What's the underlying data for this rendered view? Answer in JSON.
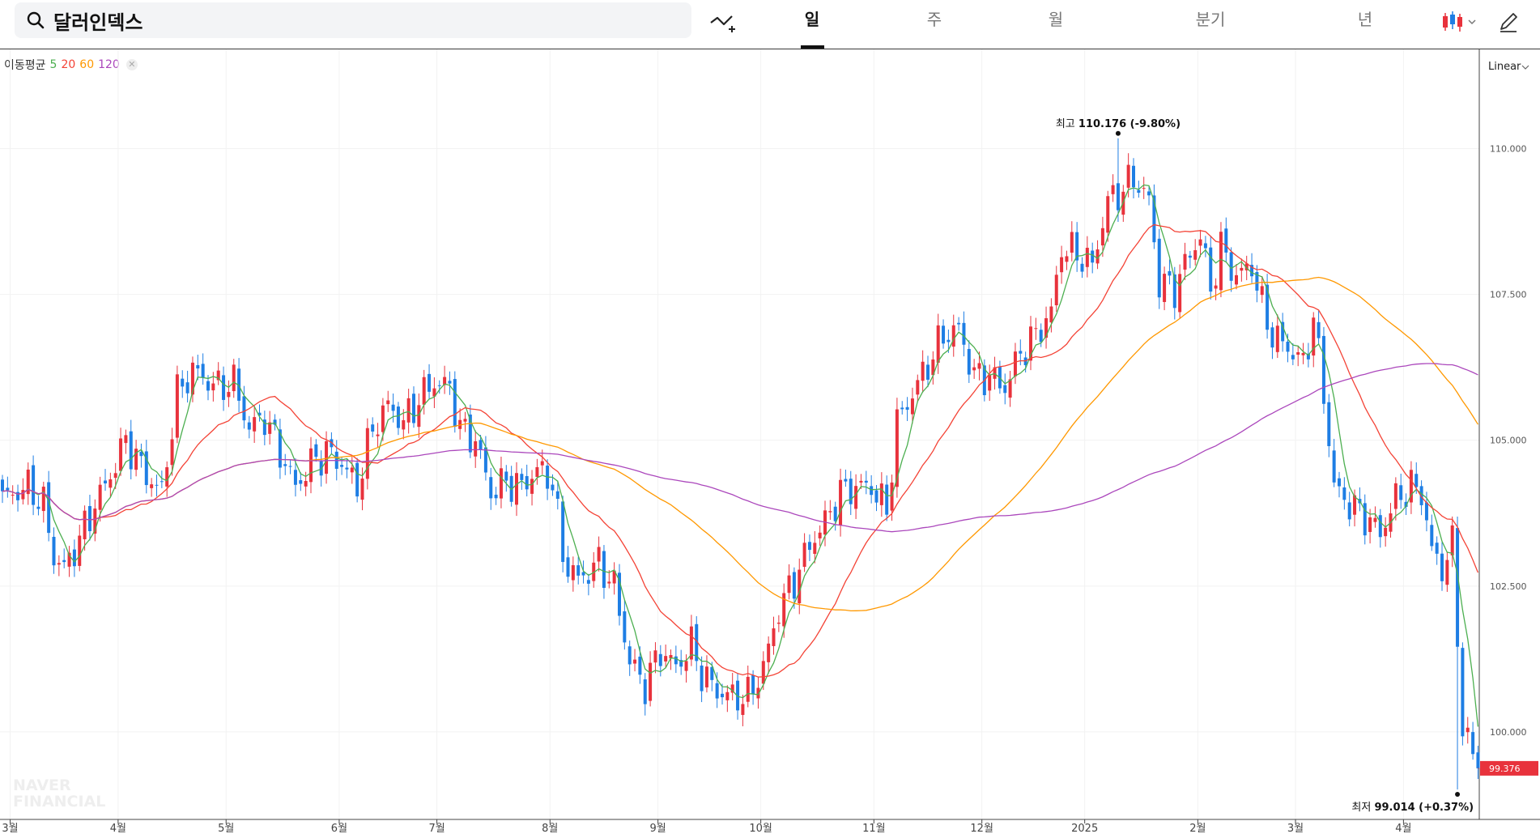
{
  "search": {
    "query": "달러인덱스"
  },
  "periods": [
    {
      "label": "일",
      "active": true
    },
    {
      "label": "주",
      "active": false
    },
    {
      "label": "월",
      "active": false
    },
    {
      "label": "분기",
      "active": false
    },
    {
      "label": "년",
      "active": false
    }
  ],
  "ma_legend": {
    "label": "이동평균",
    "periods": [
      "5",
      "20",
      "60",
      "120"
    ],
    "colors": [
      "#4caf50",
      "#f44336",
      "#ff9800",
      "#ab47bc"
    ]
  },
  "colors": {
    "up": "#e8323c",
    "down": "#1e7ee4",
    "price_tag": "#e8323c"
  },
  "watermark": [
    "NAVER",
    "FINANCIAL"
  ],
  "chart_data": {
    "type": "candlestick",
    "scale": "Linear",
    "y_ticks": [
      "110.000",
      "107.500",
      "105.000",
      "102.500",
      "100.000"
    ],
    "y_tick_values": [
      110,
      107.5,
      105,
      102.5,
      100
    ],
    "ylim": [
      98.5,
      111.7
    ],
    "x_labels": [
      "3월",
      "4월",
      "5월",
      "6월",
      "7월",
      "8월",
      "9월",
      "10월",
      "11월",
      "12월",
      "2025",
      "2월",
      "3월",
      "4월"
    ],
    "x_label_positions": [
      1.5,
      22.5,
      43.5,
      65.5,
      84.5,
      106.5,
      127.5,
      147.5,
      169.5,
      190.5,
      210.5,
      232.5,
      251.5,
      272.5
    ],
    "total_bars": 288,
    "high_annotation": {
      "label": "최고",
      "value": "110.176",
      "pct": "(-9.80%)",
      "bar_index": 217,
      "price": 110.176
    },
    "low_annotation": {
      "label": "최저",
      "value": "99.014",
      "pct": "(+0.37%)",
      "bar_index": 283,
      "price": 99.014
    },
    "last_price": "99.376",
    "last_price_value": 99.376,
    "close_anchors": [
      [
        0,
        104.0
      ],
      [
        5,
        104.2
      ],
      [
        8,
        103.9
      ],
      [
        10,
        103.0
      ],
      [
        12,
        102.8
      ],
      [
        15,
        103.3
      ],
      [
        18,
        103.9
      ],
      [
        21,
        104.4
      ],
      [
        24,
        105.0
      ],
      [
        28,
        104.4
      ],
      [
        31,
        104.1
      ],
      [
        34,
        105.8
      ],
      [
        37,
        106.2
      ],
      [
        42,
        105.9
      ],
      [
        45,
        106.0
      ],
      [
        48,
        105.2
      ],
      [
        51,
        105.4
      ],
      [
        54,
        104.8
      ],
      [
        57,
        104.2
      ],
      [
        60,
        104.6
      ],
      [
        63,
        104.8
      ],
      [
        66,
        104.6
      ],
      [
        69,
        104.2
      ],
      [
        72,
        105.2
      ],
      [
        75,
        105.6
      ],
      [
        78,
        105.3
      ],
      [
        81,
        105.7
      ],
      [
        84,
        106.0
      ],
      [
        87,
        105.9
      ],
      [
        89,
        105.2
      ],
      [
        92,
        105.0
      ],
      [
        95,
        104.1
      ],
      [
        98,
        104.3
      ],
      [
        101,
        104.2
      ],
      [
        104,
        104.5
      ],
      [
        107,
        104.3
      ],
      [
        109,
        103.0
      ],
      [
        112,
        102.6
      ],
      [
        116,
        102.9
      ],
      [
        119,
        102.5
      ],
      [
        122,
        101.2
      ],
      [
        125,
        100.8
      ],
      [
        128,
        101.4
      ],
      [
        131,
        101.1
      ],
      [
        134,
        101.5
      ],
      [
        136,
        101.0
      ],
      [
        139,
        100.7
      ],
      [
        142,
        100.6
      ],
      [
        145,
        100.6
      ],
      [
        148,
        101.1
      ],
      [
        151,
        102.1
      ],
      [
        154,
        102.6
      ],
      [
        157,
        103.2
      ],
      [
        160,
        103.6
      ],
      [
        163,
        104.1
      ],
      [
        166,
        104.2
      ],
      [
        169,
        104.2
      ],
      [
        172,
        103.8
      ],
      [
        174,
        105.3
      ],
      [
        177,
        105.8
      ],
      [
        180,
        106.3
      ],
      [
        183,
        106.8
      ],
      [
        186,
        106.9
      ],
      [
        189,
        106.1
      ],
      [
        192,
        106.1
      ],
      [
        195,
        105.9
      ],
      [
        198,
        106.5
      ],
      [
        201,
        106.8
      ],
      [
        204,
        107.2
      ],
      [
        206,
        108.3
      ],
      [
        209,
        108.2
      ],
      [
        212,
        108.0
      ],
      [
        215,
        109.1
      ],
      [
        218,
        109.3
      ],
      [
        220,
        109.5
      ],
      [
        223,
        109.1
      ],
      [
        225,
        107.7
      ],
      [
        228,
        107.6
      ],
      [
        231,
        108.2
      ],
      [
        233,
        108.5
      ],
      [
        235,
        107.6
      ],
      [
        237,
        108.3
      ],
      [
        240,
        107.8
      ],
      [
        243,
        108.0
      ],
      [
        245,
        107.3
      ],
      [
        247,
        106.8
      ],
      [
        250,
        106.6
      ],
      [
        253,
        106.3
      ],
      [
        255,
        107.1
      ],
      [
        257,
        105.8
      ],
      [
        259,
        104.2
      ],
      [
        262,
        103.9
      ],
      [
        265,
        103.7
      ],
      [
        268,
        103.4
      ],
      [
        271,
        104.0
      ],
      [
        274,
        104.2
      ],
      [
        276,
        104.1
      ],
      [
        278,
        103.1
      ],
      [
        280,
        102.8
      ],
      [
        282,
        103.2
      ],
      [
        284,
        100.1
      ],
      [
        286,
        99.6
      ],
      [
        287,
        99.376
      ]
    ]
  }
}
